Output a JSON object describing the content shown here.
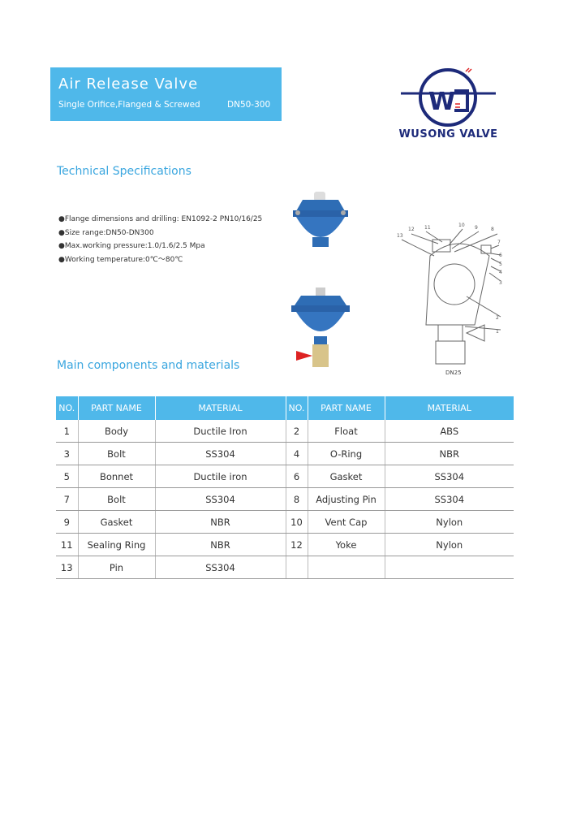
{
  "header": {
    "title": "Air Release Valve",
    "subtitle": "Single Orifice,Flanged & Screwed",
    "size_range": "DN50-300"
  },
  "logo": {
    "text": "WUSONG VALVE",
    "color": "#1d2a7a"
  },
  "tech": {
    "heading": "Technical Specifications",
    "items": [
      "●Flange dimensions and drilling: EN1092-2 PN10/16/25",
      "●Size range:DN50-DN300",
      "●Max.working pressure:1.0/1.6/2.5 Mpa",
      "●Working temperature:0℃～80℃"
    ]
  },
  "drawing": {
    "caption": "DN25",
    "callouts": [
      "1",
      "2",
      "3",
      "4",
      "5",
      "6",
      "7",
      "8",
      "9",
      "10",
      "11",
      "12",
      "13"
    ]
  },
  "components": {
    "heading": "Main components and materials",
    "headers": [
      "NO.",
      "PART NAME",
      "MATERIAL",
      "NO.",
      "PART NAME",
      "MATERIAL"
    ],
    "rows": [
      [
        "1",
        "Body",
        "Ductile Iron",
        "2",
        "Float",
        "ABS"
      ],
      [
        "3",
        "Bolt",
        "SS304",
        "4",
        "O-Ring",
        "NBR"
      ],
      [
        "5",
        "Bonnet",
        "Ductile iron",
        "6",
        "Gasket",
        "SS304"
      ],
      [
        "7",
        "Bolt",
        "SS304",
        "8",
        "Adjusting Pin",
        "SS304"
      ],
      [
        "9",
        "Gasket",
        "NBR",
        "10",
        "Vent Cap",
        "Nylon"
      ],
      [
        "11",
        "Sealing Ring",
        "NBR",
        "12",
        "Yoke",
        "Nylon"
      ],
      [
        "13",
        "Pin",
        "SS304",
        "",
        "",
        ""
      ]
    ]
  },
  "colors": {
    "accent": "#4fb8ea",
    "heading": "#3aa6df",
    "valve": "#2e6db5"
  }
}
